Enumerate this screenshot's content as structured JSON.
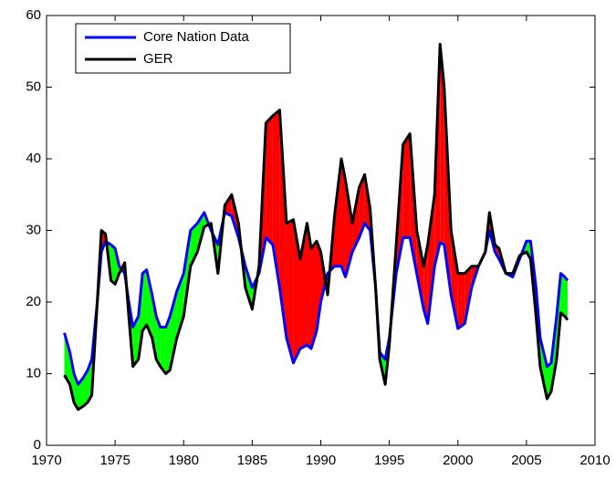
{
  "chart_data": {
    "type": "line",
    "x": [
      1971.3,
      1971.7,
      1972.0,
      1972.3,
      1972.7,
      1973.0,
      1973.3,
      1973.7,
      1974.0,
      1974.3,
      1974.7,
      1975.0,
      1975.3,
      1975.7,
      1976.0,
      1976.3,
      1976.7,
      1977.0,
      1977.3,
      1977.7,
      1978.0,
      1978.3,
      1978.7,
      1979.0,
      1979.5,
      1980.0,
      1980.5,
      1981.0,
      1981.5,
      1982.0,
      1982.5,
      1983.0,
      1983.5,
      1984.0,
      1984.5,
      1985.0,
      1985.5,
      1986.0,
      1986.5,
      1987.0,
      1987.5,
      1988.0,
      1988.5,
      1989.0,
      1989.3,
      1989.7,
      1990.0,
      1990.5,
      1991.0,
      1991.5,
      1991.8,
      1992.3,
      1992.8,
      1993.2,
      1993.6,
      1994.0,
      1994.3,
      1994.7,
      1995.0,
      1995.5,
      1996.0,
      1996.5,
      1997.0,
      1997.5,
      1997.8,
      1998.3,
      1998.7,
      1999.0,
      1999.5,
      2000.0,
      2000.5,
      2001.0,
      2001.5,
      2002.0,
      2002.3,
      2002.7,
      2003.0,
      2003.5,
      2004.0,
      2004.5,
      2005.0,
      2005.3,
      2005.7,
      2006.0,
      2006.5,
      2006.8,
      2007.2,
      2007.5,
      2007.8,
      2008.0
    ],
    "series": [
      {
        "name": "Core Nation Data",
        "color": "#0000ff",
        "values": [
          15.7,
          13,
          10,
          8.5,
          9.5,
          10.5,
          12,
          20,
          27,
          28.5,
          28,
          27.5,
          25,
          24,
          20,
          16.5,
          18,
          24,
          24.5,
          21,
          18,
          16.5,
          16.5,
          18,
          21.5,
          24,
          30,
          31,
          32.5,
          30,
          28,
          32.5,
          32,
          29,
          25,
          22,
          24,
          29,
          28,
          22,
          15,
          11.5,
          13.5,
          14,
          13.5,
          16,
          20,
          24,
          25,
          25,
          23.5,
          27,
          29,
          31,
          30,
          22,
          13,
          12,
          15,
          24,
          29,
          29,
          24,
          19,
          17,
          25,
          28.3,
          28,
          21,
          16.3,
          17,
          22,
          25,
          27,
          30,
          27,
          26,
          24,
          23.5,
          26,
          28.5,
          28.5,
          22,
          15,
          11,
          11.5,
          18,
          24,
          23.5,
          23
        ]
      },
      {
        "name": "GER",
        "color": "#000000",
        "values": [
          9.8,
          8.5,
          6,
          5,
          5.5,
          6,
          7,
          20,
          30,
          29.5,
          23,
          22.5,
          24,
          25.5,
          18,
          11,
          12,
          16,
          16.8,
          15,
          12,
          11,
          10,
          10.5,
          15,
          18,
          25,
          27,
          30.5,
          31,
          24,
          33.5,
          35,
          31,
          22,
          19,
          25,
          45,
          46,
          46.8,
          31,
          31.5,
          26,
          31,
          27.5,
          28.5,
          27,
          21,
          32,
          40,
          37,
          31,
          36,
          37.8,
          33,
          22,
          12,
          8.5,
          14,
          28,
          42,
          43.5,
          30,
          25,
          28,
          35,
          56,
          50,
          30,
          24,
          24,
          25,
          25,
          27,
          32.5,
          28,
          27.5,
          24,
          24,
          26.5,
          27,
          26,
          18,
          11,
          6.5,
          7.5,
          12,
          18.5,
          18,
          17.5
        ]
      }
    ],
    "fill_above_color": "#ff0000",
    "fill_below_color": "#00ff00",
    "xlim": [
      1970,
      2010
    ],
    "xticks": [
      1970,
      1975,
      1980,
      1985,
      1990,
      1995,
      2000,
      2005,
      2010
    ],
    "ylim": [
      0,
      60
    ],
    "yticks": [
      0,
      10,
      20,
      30,
      40,
      50,
      60
    ],
    "grid": false,
    "legend_position": "upper left"
  }
}
